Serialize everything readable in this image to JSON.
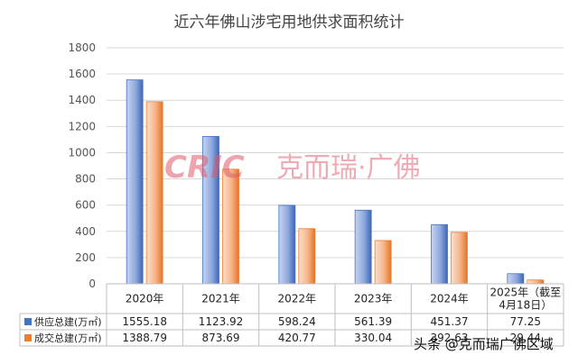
{
  "chart_data": {
    "type": "bar",
    "title": "近六年佛山涉宅用地供求面积统计",
    "categories": [
      "2020年",
      "2021年",
      "2022年",
      "2023年",
      "2024年",
      "2025年（截至4月18日）"
    ],
    "category_lines": [
      [
        "2020年"
      ],
      [
        "2021年"
      ],
      [
        "2022年"
      ],
      [
        "2023年"
      ],
      [
        "2024年"
      ],
      [
        "2025年（截至",
        "4月18日）"
      ]
    ],
    "series": [
      {
        "name": "供应总建(万㎡)",
        "color": "#4472C4",
        "values": [
          1555.18,
          1123.92,
          598.24,
          561.39,
          451.37,
          77.25
        ],
        "labels": [
          "1555.18",
          "1123.92",
          "598.24",
          "561.39",
          "451.37",
          "77.25"
        ]
      },
      {
        "name": "成交总建(万㎡)",
        "color": "#ED7D31",
        "values": [
          1388.79,
          873.69,
          420.77,
          330.04,
          392.63,
          29.44
        ],
        "labels": [
          "1388.79",
          "873.69",
          "420.77",
          "330.04",
          "392.63",
          "29.44"
        ]
      }
    ],
    "ylim": [
      0,
      1800
    ],
    "yticks": [
      0,
      200,
      400,
      600,
      800,
      1000,
      1200,
      1400,
      1600,
      1800
    ],
    "grid": true,
    "legend": "data-table-left"
  },
  "watermark": {
    "brand_latin": "CRIC",
    "brand_cn": "克而瑞·广佛"
  },
  "footer": "头条 @克而瑞广佛区域"
}
